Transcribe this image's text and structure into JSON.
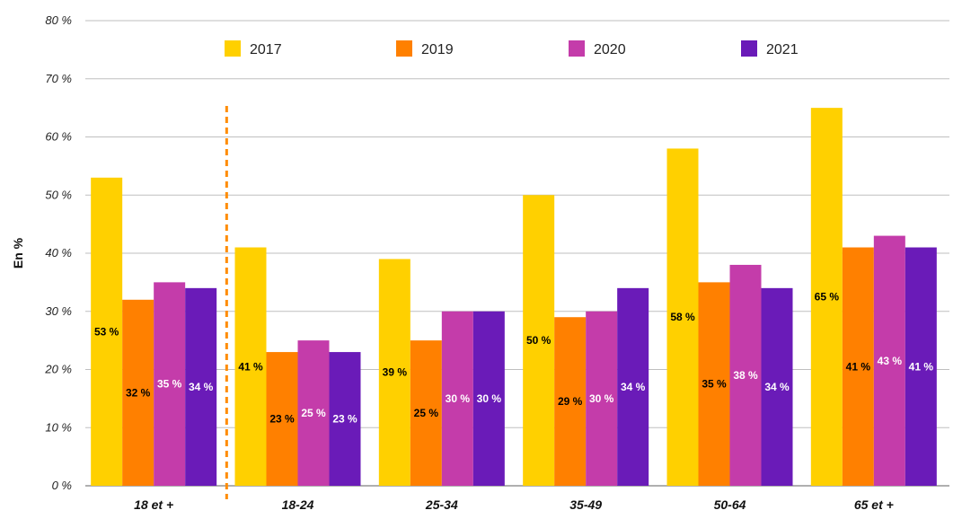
{
  "chart_data": {
    "type": "bar",
    "ylabel": "En %",
    "ylim": [
      0,
      80
    ],
    "yticks": [
      "0 %",
      "10 %",
      "20 %",
      "30 %",
      "40 %",
      "50 %",
      "60 %",
      "70 %",
      "80 %"
    ],
    "categories": [
      "18 et +",
      "18-24",
      "25-34",
      "35-49",
      "50-64",
      "65 et +"
    ],
    "series": [
      {
        "name": "2017",
        "color": "#FFD000",
        "label_color": "#000000",
        "values": [
          53,
          41,
          39,
          50,
          58,
          65
        ],
        "labels": [
          "53 %",
          "41 %",
          "39 %",
          "50 %",
          "58 %",
          "65 %"
        ]
      },
      {
        "name": "2019",
        "color": "#FF8000",
        "label_color": "#000000",
        "values": [
          32,
          23,
          25,
          29,
          35,
          41
        ],
        "labels": [
          "32 %",
          "23 %",
          "25 %",
          "29 %",
          "35 %",
          "41 %"
        ]
      },
      {
        "name": "2020",
        "color": "#C43CAA",
        "label_color": "#ffffff",
        "values": [
          35,
          25,
          30,
          30,
          38,
          43
        ],
        "labels": [
          "35 %",
          "25 %",
          "30 %",
          "30 %",
          "38 %",
          "43 %"
        ]
      },
      {
        "name": "2021",
        "color": "#6A1BB8",
        "label_color": "#ffffff",
        "values": [
          34,
          23,
          30,
          34,
          34,
          41
        ],
        "labels": [
          "34 %",
          "23 %",
          "30 %",
          "34 %",
          "34 %",
          "41 %"
        ]
      }
    ],
    "legend": {
      "position": "top"
    },
    "grid": true,
    "separator_color": "#FF8C00"
  }
}
